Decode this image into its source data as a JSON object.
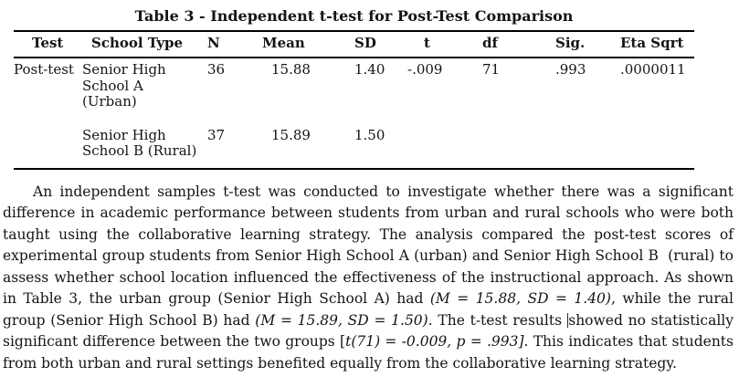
{
  "colors": {
    "background": "#ffffff",
    "text": "#141414",
    "rule": "#000000"
  },
  "document": {
    "table_title": "Table 3 - Independent t-test for Post-Test Comparison",
    "table": {
      "columns": [
        "Test",
        "School Type",
        "N",
        "Mean",
        "SD",
        "t",
        "df",
        "Sig.",
        "Eta Sqrt"
      ],
      "rows": [
        {
          "cells": [
            "Post-test",
            "Senior High\nSchool A\n(Urban)",
            "36",
            "15.88",
            "1.40",
            "-.009",
            "71",
            ".993",
            ".0000011"
          ]
        },
        {
          "cells": [
            "",
            "Senior High\nSchool B (Rural)",
            "37",
            "15.89",
            "1.50",
            "",
            "",
            "",
            ""
          ]
        }
      ]
    },
    "paragraph": {
      "segments": [
        {
          "style": "normal",
          "text": "An independent samples t-test was conducted to investigate whether there was a significant difference in academic performance between students from urban and rural schools who were both taught using the collaborative learning strategy. The analysis compared the post-test scores of experimental group students from Senior High School A (urban) and Senior High School B  (rural) to assess whether school location influenced the effectiveness of the instructional approach. As shown in Table 3, the urban group (Senior High School A) had "
        },
        {
          "style": "italic",
          "text": "(M = 15.88, SD = 1.40)"
        },
        {
          "style": "normal",
          "text": ", while the rural group (Senior High School B) had "
        },
        {
          "style": "italic",
          "text": "(M = 15.89, SD = 1.50)"
        },
        {
          "style": "normal",
          "text": ". The t-test results "
        },
        {
          "style": "caret",
          "text": ""
        },
        {
          "style": "normal",
          "text": "showed no statistically significant difference between the two groups ["
        },
        {
          "style": "italic",
          "text": "t(71) = -0.009, p = .993]"
        },
        {
          "style": "normal",
          "text": ". This indicates that students from both urban and rural settings benefited equally from the collaborative learning strategy."
        }
      ]
    }
  }
}
